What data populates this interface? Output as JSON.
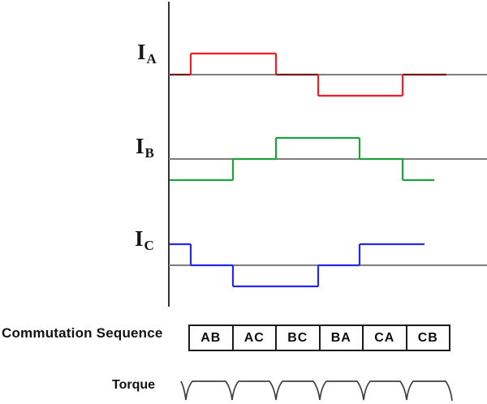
{
  "phases": [
    {
      "name": "phase-a-current",
      "label": "I",
      "sub": "A",
      "color": "#f51d23",
      "levels": [
        0,
        1,
        1,
        0,
        -1,
        -1,
        0
      ]
    },
    {
      "name": "phase-b-current",
      "label": "I",
      "sub": "B",
      "color": "#1ca33a",
      "levels": [
        -1,
        -1,
        0,
        1,
        1,
        0,
        -1
      ]
    },
    {
      "name": "phase-c-current",
      "label": "I",
      "sub": "C",
      "color": "#2727ee",
      "levels": [
        1,
        0,
        -1,
        -1,
        0,
        1,
        1
      ]
    }
  ],
  "commutation": {
    "label": "Commutation Sequence",
    "steps": [
      "AB",
      "AC",
      "BC",
      "BA",
      "CA",
      "CB"
    ]
  },
  "torque": {
    "label": "Torque",
    "pulse_count": 6
  },
  "colors": {
    "axis": "#333333",
    "baseline": "#7e7e7e",
    "phase_a_overlap": "#7a1013",
    "torque_line": "#3f3f3f",
    "table_border": "#1c1c1c"
  }
}
